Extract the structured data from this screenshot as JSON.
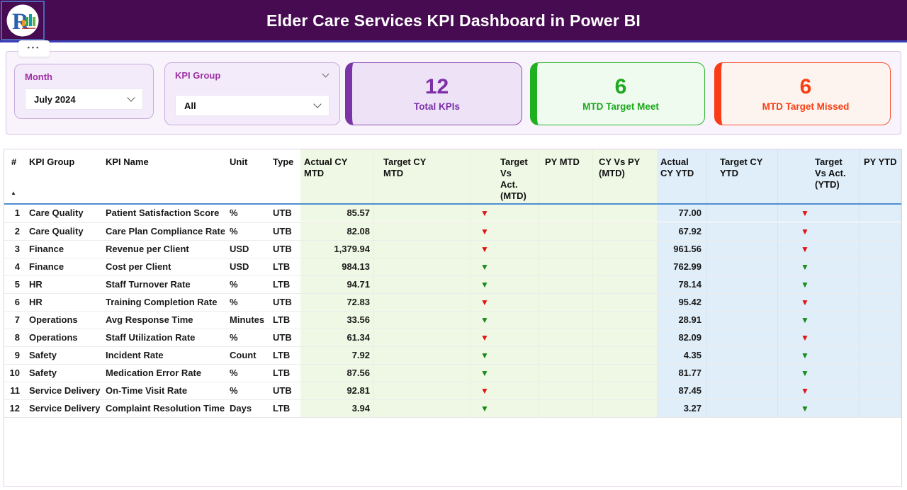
{
  "header": {
    "title": "Elder Care Services KPI Dashboard in Power BI"
  },
  "menu": {
    "more_options": "•••"
  },
  "filters": {
    "month": {
      "label": "Month",
      "value": "July 2024"
    },
    "kpi_group": {
      "label": "KPI Group",
      "value": "All"
    }
  },
  "cards": {
    "total": {
      "value": "12",
      "label": "Total KPIs",
      "accent": "#7C2FA8",
      "bg": "#EDE2F6"
    },
    "meet": {
      "value": "6",
      "label": "MTD Target Meet",
      "accent": "#1DA81D",
      "bg": "#EFFBEF"
    },
    "missed": {
      "value": "6",
      "label": "MTD Target Missed",
      "accent": "#F93E12",
      "bg": "#FDF4F0"
    }
  },
  "icons": {
    "down_arrow": "▼",
    "sort_ascending": "▲"
  },
  "colors": {
    "header_bg": "#470B52",
    "header_underline": "#3A3FB8",
    "mtd_section_bg": "#EFF8E4",
    "ytd_section_bg": "#E0EEF9",
    "arrow_red": "#E01212",
    "arrow_green": "#168A16",
    "slicer_label": "#9E2FA4",
    "header_separator": "#4F8FD0"
  },
  "table": {
    "columns": [
      {
        "key": "num",
        "label": "#"
      },
      {
        "key": "group",
        "label": "KPI Group"
      },
      {
        "key": "name",
        "label": "KPI Name"
      },
      {
        "key": "unit",
        "label": "Unit"
      },
      {
        "key": "type",
        "label": "Type"
      },
      {
        "key": "actual_mtd",
        "label": "Actual CY\nMTD"
      },
      {
        "key": "target_mtd",
        "label": "Target CY\nMTD"
      },
      {
        "key": "tva_mtd",
        "label": "Target Vs\nAct.\n(MTD)"
      },
      {
        "key": "py_mtd",
        "label": "PY MTD"
      },
      {
        "key": "cy_vs_py_mtd",
        "label": "CY Vs PY\n(MTD)"
      },
      {
        "key": "actual_ytd",
        "label": "Actual\nCY YTD"
      },
      {
        "key": "target_ytd",
        "label": "Target CY\nYTD"
      },
      {
        "key": "tva_ytd",
        "label": "Target\nVs Act.\n(YTD)"
      },
      {
        "key": "py_ytd",
        "label": "PY YTD"
      }
    ],
    "rows": [
      {
        "num": "1",
        "group": "Care Quality",
        "name": "Patient Satisfaction Score",
        "unit": "%",
        "type": "UTB",
        "actual_mtd": "85.57",
        "target_mtd": "",
        "tva_mtd": "down-red",
        "py_mtd": "",
        "cy_vs_py_mtd": "",
        "actual_ytd": "77.00",
        "target_ytd": "",
        "tva_ytd": "down-red",
        "py_ytd": ""
      },
      {
        "num": "2",
        "group": "Care Quality",
        "name": "Care Plan Compliance Rate",
        "unit": "%",
        "type": "UTB",
        "actual_mtd": "82.08",
        "target_mtd": "",
        "tva_mtd": "down-red",
        "py_mtd": "",
        "cy_vs_py_mtd": "",
        "actual_ytd": "67.92",
        "target_ytd": "",
        "tva_ytd": "down-red",
        "py_ytd": ""
      },
      {
        "num": "3",
        "group": "Finance",
        "name": "Revenue per Client",
        "unit": "USD",
        "type": "UTB",
        "actual_mtd": "1,379.94",
        "target_mtd": "",
        "tva_mtd": "down-red",
        "py_mtd": "",
        "cy_vs_py_mtd": "",
        "actual_ytd": "961.56",
        "target_ytd": "",
        "tva_ytd": "down-red",
        "py_ytd": ""
      },
      {
        "num": "4",
        "group": "Finance",
        "name": "Cost per Client",
        "unit": "USD",
        "type": "LTB",
        "actual_mtd": "984.13",
        "target_mtd": "",
        "tva_mtd": "down-green",
        "py_mtd": "",
        "cy_vs_py_mtd": "",
        "actual_ytd": "762.99",
        "target_ytd": "",
        "tva_ytd": "down-green",
        "py_ytd": ""
      },
      {
        "num": "5",
        "group": "HR",
        "name": "Staff Turnover Rate",
        "unit": "%",
        "type": "LTB",
        "actual_mtd": "94.71",
        "target_mtd": "",
        "tva_mtd": "down-green",
        "py_mtd": "",
        "cy_vs_py_mtd": "",
        "actual_ytd": "78.14",
        "target_ytd": "",
        "tva_ytd": "down-green",
        "py_ytd": ""
      },
      {
        "num": "6",
        "group": "HR",
        "name": "Training Completion Rate",
        "unit": "%",
        "type": "UTB",
        "actual_mtd": "72.83",
        "target_mtd": "",
        "tva_mtd": "down-red",
        "py_mtd": "",
        "cy_vs_py_mtd": "",
        "actual_ytd": "95.42",
        "target_ytd": "",
        "tva_ytd": "down-red",
        "py_ytd": ""
      },
      {
        "num": "7",
        "group": "Operations",
        "name": "Avg Response Time",
        "unit": "Minutes",
        "type": "LTB",
        "actual_mtd": "33.56",
        "target_mtd": "",
        "tva_mtd": "down-green",
        "py_mtd": "",
        "cy_vs_py_mtd": "",
        "actual_ytd": "28.91",
        "target_ytd": "",
        "tva_ytd": "down-green",
        "py_ytd": ""
      },
      {
        "num": "8",
        "group": "Operations",
        "name": "Staff Utilization Rate",
        "unit": "%",
        "type": "UTB",
        "actual_mtd": "61.34",
        "target_mtd": "",
        "tva_mtd": "down-red",
        "py_mtd": "",
        "cy_vs_py_mtd": "",
        "actual_ytd": "82.09",
        "target_ytd": "",
        "tva_ytd": "down-red",
        "py_ytd": ""
      },
      {
        "num": "9",
        "group": "Safety",
        "name": "Incident Rate",
        "unit": "Count",
        "type": "LTB",
        "actual_mtd": "7.92",
        "target_mtd": "",
        "tva_mtd": "down-green",
        "py_mtd": "",
        "cy_vs_py_mtd": "",
        "actual_ytd": "4.35",
        "target_ytd": "",
        "tva_ytd": "down-green",
        "py_ytd": ""
      },
      {
        "num": "10",
        "group": "Safety",
        "name": "Medication Error Rate",
        "unit": "%",
        "type": "LTB",
        "actual_mtd": "87.56",
        "target_mtd": "",
        "tva_mtd": "down-green",
        "py_mtd": "",
        "cy_vs_py_mtd": "",
        "actual_ytd": "81.77",
        "target_ytd": "",
        "tva_ytd": "down-green",
        "py_ytd": ""
      },
      {
        "num": "11",
        "group": "Service Delivery",
        "name": "On-Time Visit Rate",
        "unit": "%",
        "type": "UTB",
        "actual_mtd": "92.81",
        "target_mtd": "",
        "tva_mtd": "down-red",
        "py_mtd": "",
        "cy_vs_py_mtd": "",
        "actual_ytd": "87.45",
        "target_ytd": "",
        "tva_ytd": "down-red",
        "py_ytd": ""
      },
      {
        "num": "12",
        "group": "Service Delivery",
        "name": "Complaint Resolution Time",
        "unit": "Days",
        "type": "LTB",
        "actual_mtd": "3.94",
        "target_mtd": "",
        "tva_mtd": "down-green",
        "py_mtd": "",
        "cy_vs_py_mtd": "",
        "actual_ytd": "3.27",
        "target_ytd": "",
        "tva_ytd": "down-green",
        "py_ytd": ""
      }
    ]
  }
}
